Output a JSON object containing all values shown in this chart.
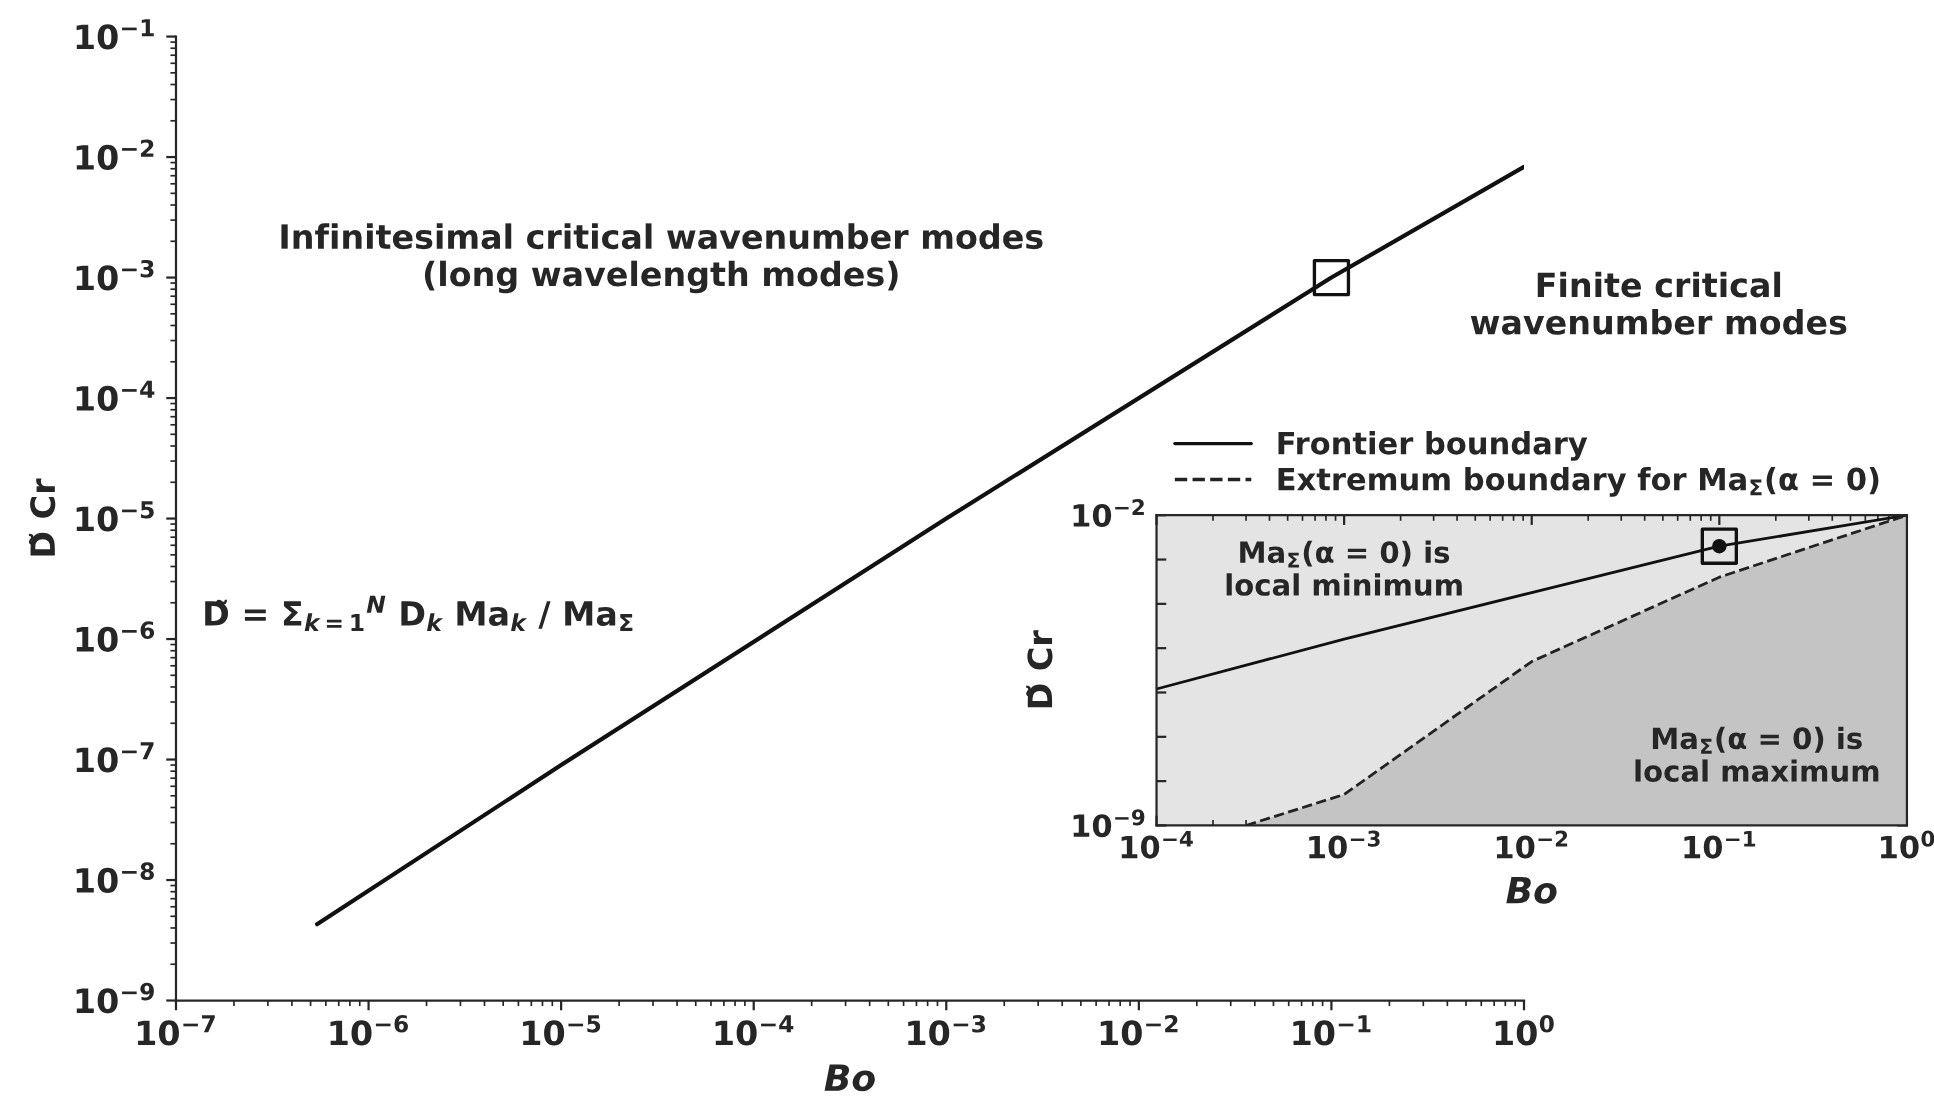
{
  "chart_data": [
    {
      "type": "line",
      "xlabel": "Bo",
      "ylabel": "D̃ Cr",
      "log": "xy",
      "grid": false,
      "legend": false,
      "xlim": [
        1e-07,
        1
      ],
      "ylim": [
        1e-09,
        0.1
      ],
      "xticks": [
        {
          "value": 1e-07,
          "label": "10$^{−7}$"
        },
        {
          "value": 1e-06,
          "label": "10$^{−6}$"
        },
        {
          "value": 1e-05,
          "label": "10$^{−5}$"
        },
        {
          "value": 0.0001,
          "label": "10$^{−4}$"
        },
        {
          "value": 0.001,
          "label": "10$^{−3}$"
        },
        {
          "value": 0.01,
          "label": "10$^{−2}$"
        },
        {
          "value": 0.1,
          "label": "10$^{−1}$"
        },
        {
          "value": 1,
          "label": "10$^{0}$"
        }
      ],
      "yticks": [
        {
          "value": 1e-09,
          "label": "10$^{−9}$"
        },
        {
          "value": 1e-08,
          "label": "10$^{−8}$"
        },
        {
          "value": 1e-07,
          "label": "10$^{−7}$"
        },
        {
          "value": 1e-06,
          "label": "10$^{−6}$"
        },
        {
          "value": 1e-05,
          "label": "10$^{−5}$"
        },
        {
          "value": 0.0001,
          "label": "10$^{−4}$"
        },
        {
          "value": 0.001,
          "label": "10$^{−3}$"
        },
        {
          "value": 0.01,
          "label": "10$^{−2}$"
        },
        {
          "value": 0.1,
          "label": "10$^{−1}$"
        }
      ],
      "series": [
        {
          "color": "#111111",
          "line_style": "solid",
          "marker": "none",
          "x": [
            5.4e-07,
            1e-05,
            0.001,
            0.1,
            1
          ],
          "values": [
            4.3e-09,
            9e-08,
            1e-05,
            0.001,
            0.0083
          ]
        },
        {
          "type": "scatter",
          "color": "#111111",
          "marker": "square",
          "x": [
            0.1
          ],
          "values": [
            0.001
          ]
        }
      ],
      "annotations": [
        "Infinitesimal critical wavenumber modes\n(long wavelength modes)",
        "Finite critical\nwavenumber modes",
        "D̃ = Σ$_{k=1}$$^{N}$ D$_{k}$ Ma$_{k}$ / Ma$_{Σ}$"
      ]
    },
    {
      "type": "line",
      "xlabel": "Bo",
      "ylabel": "D̃ Cr",
      "log": "xy",
      "grid": false,
      "legend": "top",
      "xlim": [
        0.0001,
        1
      ],
      "ylim": [
        1e-09,
        0.01
      ],
      "xticks": [
        {
          "value": 0.0001,
          "label": "10$^{−4}$"
        },
        {
          "value": 0.001,
          "label": "10$^{−3}$"
        },
        {
          "value": 0.01,
          "label": "10$^{−2}$"
        },
        {
          "value": 0.1,
          "label": "10$^{−1}$"
        },
        {
          "value": 1,
          "label": "10$^{0}$"
        }
      ],
      "yticks": [
        {
          "value": 1e-09,
          "label": "10$^{−9}$"
        },
        {
          "value": 1e-08,
          "label": null
        },
        {
          "value": 1e-07,
          "label": null
        },
        {
          "value": 1e-06,
          "label": null
        },
        {
          "value": 1e-05,
          "label": null
        },
        {
          "value": 0.0001,
          "label": null
        },
        {
          "value": 0.001,
          "label": null
        },
        {
          "value": 0.01,
          "label": "10$^{−2}$"
        }
      ],
      "bands": [
        {
          "axis": "y",
          "from": 1e-09,
          "to": 0.01,
          "color": "#e4e4e4"
        }
      ],
      "series": [
        {
          "name": "Frontier boundary",
          "color": "#111111",
          "line_style": "solid",
          "marker": "none",
          "x": [
            0.0001,
            0.001,
            0.01,
            0.1,
            1
          ],
          "values": [
            1.2e-06,
            1.6e-05,
            0.00018,
            0.002,
            0.01
          ]
        },
        {
          "type": "area",
          "name": "Extremum boundary for Ma$_{Σ}$(α = 0)",
          "color": "#c4c4c4",
          "line_style": "dashed",
          "marker": "none",
          "x": [
            0.0003,
            0.001,
            0.01,
            0.1,
            1
          ],
          "values": [
            1e-09,
            5e-09,
            5e-06,
            0.0004,
            0.01
          ]
        },
        {
          "type": "scatter",
          "color": "#111111",
          "marker": "circle",
          "x": [
            0.1
          ],
          "values": [
            0.002
          ]
        }
      ],
      "annotations": [
        "Ma$_{Σ}$(α = 0) is\nlocal minimum",
        "Ma$_{Σ}$(α = 0) is\nlocal maximum"
      ]
    }
  ]
}
